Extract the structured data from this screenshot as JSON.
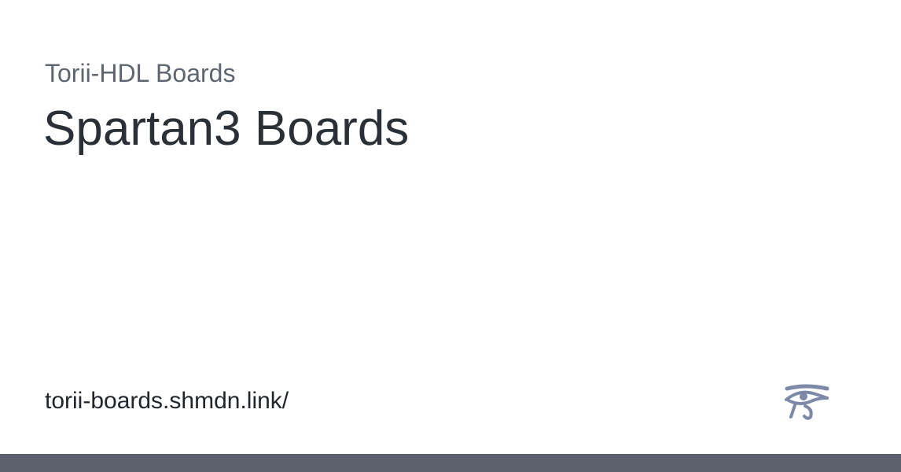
{
  "card": {
    "site_name": "Torii-HDL Boards",
    "title": "Spartan3 Boards",
    "url": "torii-boards.shmdn.link/"
  },
  "logo": {
    "icon": "eye-of-horus-icon",
    "color": "#7c8aa8"
  },
  "colors": {
    "background": "#ffffff",
    "site_name": "#5f6570",
    "title": "#2b2f36",
    "url": "#22262c",
    "bottom_bar": "#5b616c"
  }
}
